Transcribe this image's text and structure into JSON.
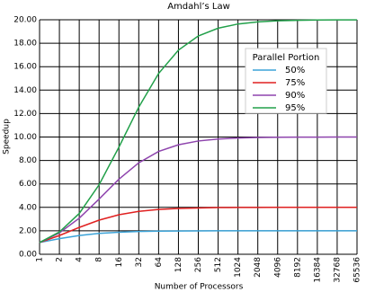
{
  "chart_data": {
    "type": "line",
    "title": "Amdahl’s Law",
    "x_label": "Number of Processors",
    "y_label": "Speedup",
    "categories": [
      "1",
      "2",
      "4",
      "8",
      "16",
      "32",
      "64",
      "128",
      "256",
      "512",
      "1024",
      "2048",
      "4096",
      "8192",
      "16384",
      "32768",
      "65536"
    ],
    "ylim": [
      0,
      20
    ],
    "yticks": [
      {
        "value": 0,
        "label": "0.00"
      },
      {
        "value": 2,
        "label": "2.00"
      },
      {
        "value": 4,
        "label": "4.00"
      },
      {
        "value": 6,
        "label": "6.00"
      },
      {
        "value": 8,
        "label": "8.00"
      },
      {
        "value": 10,
        "label": "10.00"
      },
      {
        "value": 12,
        "label": "12.00"
      },
      {
        "value": 14,
        "label": "14.00"
      },
      {
        "value": 16,
        "label": "16.00"
      },
      {
        "value": 18,
        "label": "18.00"
      },
      {
        "value": 20,
        "label": "20.00"
      }
    ],
    "grid": true,
    "legend_title": "Parallel Portion",
    "legend_position": "upper-right",
    "series": [
      {
        "name": "50%",
        "color": "#3ba3d8",
        "values": [
          1,
          1.33,
          1.6,
          1.78,
          1.88,
          1.94,
          1.97,
          1.98,
          1.99,
          2.0,
          2.0,
          2.0,
          2.0,
          2.0,
          2.0,
          2.0,
          2.0
        ]
      },
      {
        "name": "75%",
        "color": "#e02020",
        "values": [
          1,
          1.6,
          2.29,
          2.91,
          3.37,
          3.66,
          3.82,
          3.91,
          3.95,
          3.98,
          3.99,
          3.99,
          4.0,
          4.0,
          4.0,
          4.0,
          4.0
        ]
      },
      {
        "name": "90%",
        "color": "#8e44ad",
        "values": [
          1,
          1.82,
          3.08,
          4.71,
          6.4,
          7.8,
          8.77,
          9.34,
          9.66,
          9.83,
          9.91,
          9.96,
          9.98,
          9.99,
          9.99,
          10.0,
          10.0
        ]
      },
      {
        "name": "95%",
        "color": "#22a04a",
        "values": [
          1,
          1.9,
          3.48,
          5.93,
          9.14,
          12.55,
          15.42,
          17.41,
          18.62,
          19.28,
          19.64,
          19.82,
          19.91,
          19.95,
          19.98,
          19.99,
          19.99
        ]
      }
    ]
  }
}
